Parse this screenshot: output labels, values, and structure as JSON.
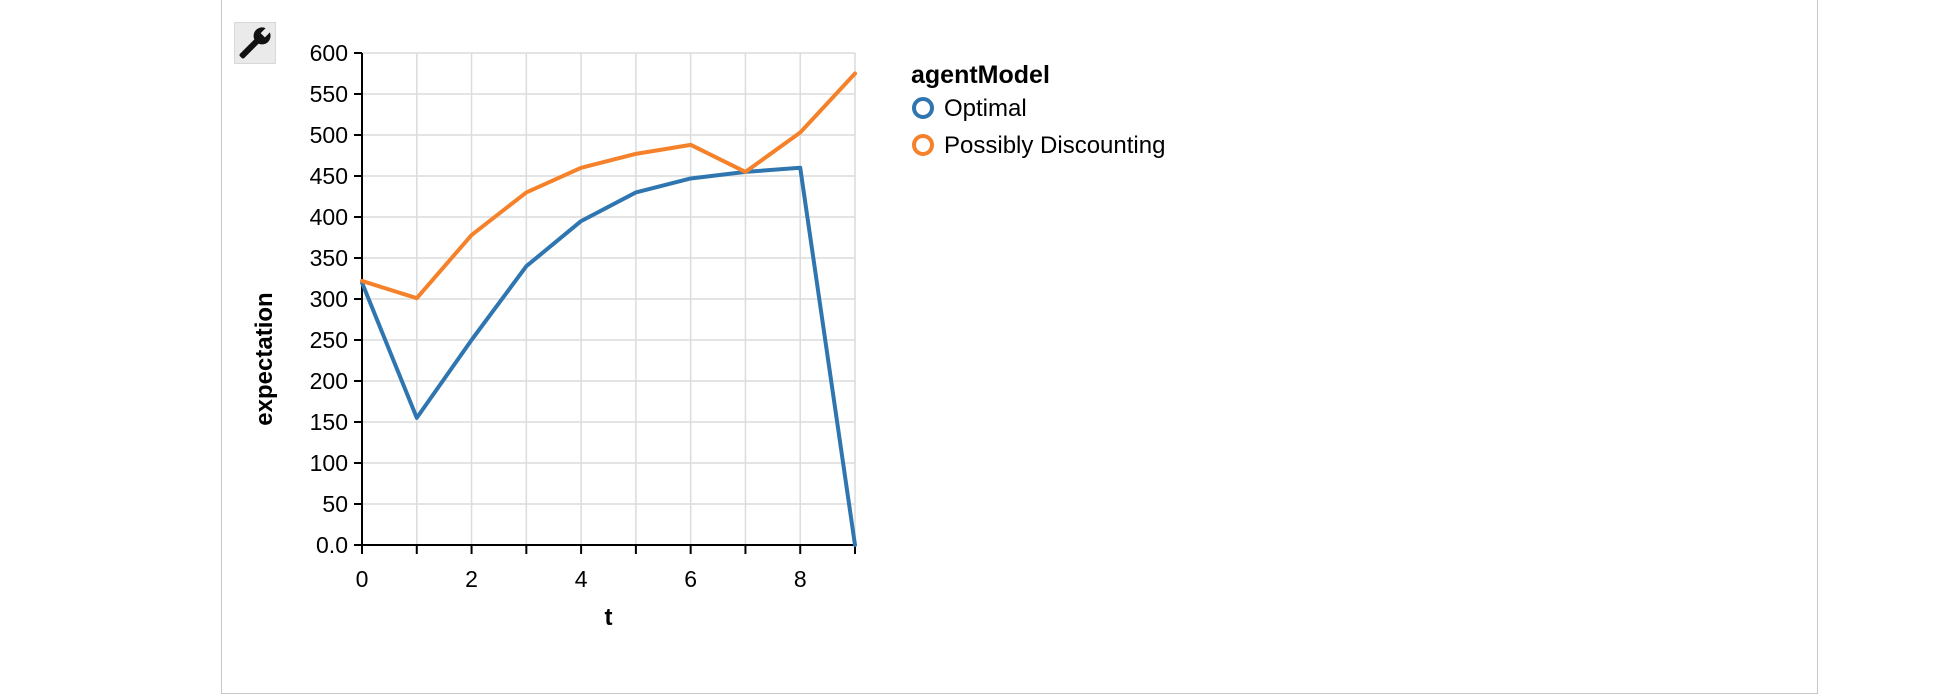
{
  "toolbar": {
    "tool_icon": "wrench-icon"
  },
  "colors": {
    "optimal": "#2f76b1",
    "possibly_discounting": "#f5822a",
    "grid": "#dcdcdc",
    "axis": "#000000"
  },
  "chart_data": {
    "type": "line",
    "xlabel": "t",
    "ylabel": "expectation",
    "x_ticks": [
      "0",
      "2",
      "4",
      "6",
      "8"
    ],
    "y_ticks": [
      "0.0",
      "50",
      "100",
      "150",
      "200",
      "250",
      "300",
      "350",
      "400",
      "450",
      "500",
      "550",
      "600"
    ],
    "xlim": [
      0,
      9
    ],
    "ylim": [
      0,
      600
    ],
    "grid": true,
    "legend": {
      "title": "agentModel",
      "placement": "right"
    },
    "x": [
      0,
      1,
      2,
      3,
      4,
      5,
      6,
      7,
      8,
      9
    ],
    "series": [
      {
        "name": "Optimal",
        "color_key": "optimal",
        "values": [
          320,
          155,
          250,
          340,
          395,
          430,
          447,
          455,
          460,
          0
        ]
      },
      {
        "name": "Possibly Discounting",
        "color_key": "possibly_discounting",
        "values": [
          322,
          301,
          378,
          430,
          460,
          477,
          488,
          455,
          503,
          575
        ]
      }
    ]
  }
}
